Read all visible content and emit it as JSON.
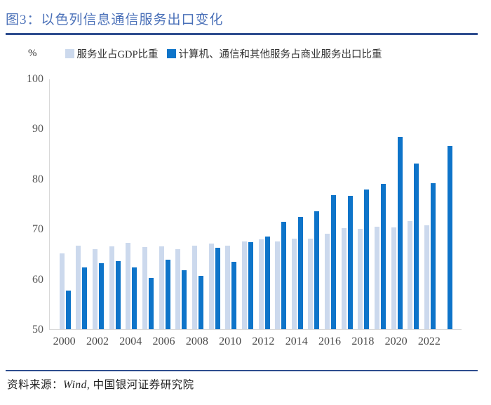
{
  "page": {
    "title": "图3：以色列信息通信服务出口变化",
    "footer": {
      "prefix": "资料来源：",
      "wind": "Wind, ",
      "institution": "中国银河证券研究院"
    }
  },
  "colors": {
    "title_color": "#4a70b8",
    "rule_color": "#2e4d8f",
    "axis_line_color": "#d9d9d9"
  },
  "chart_data": {
    "type": "bar",
    "title": "以色列信息通信服务出口变化",
    "unit": "%",
    "ylabel": "%",
    "xlabel": "",
    "ylim": [
      50,
      100
    ],
    "yticks": [
      100,
      90,
      80,
      70,
      60,
      50
    ],
    "grid": false,
    "legend_position": "top",
    "categories": [
      2000,
      2001,
      2002,
      2003,
      2004,
      2005,
      2006,
      2007,
      2008,
      2009,
      2010,
      2011,
      2012,
      2013,
      2014,
      2015,
      2016,
      2017,
      2018,
      2019,
      2020,
      2021,
      2022,
      2023
    ],
    "xtick_labels": [
      "2000",
      "2002",
      "2004",
      "2006",
      "2008",
      "2010",
      "2012",
      "2014",
      "2016",
      "2018",
      "2020",
      "2022"
    ],
    "series": [
      {
        "name": "服务业占GDP比重",
        "color": "#ccd9ed",
        "values": [
          65.1,
          66.6,
          66.0,
          66.5,
          67.2,
          66.4,
          66.5,
          66.0,
          66.6,
          67.1,
          66.7,
          67.5,
          67.9,
          67.5,
          68.1,
          68.1,
          69.0,
          70.2,
          70.1,
          70.4,
          70.3,
          71.6,
          70.8,
          null
        ]
      },
      {
        "name": "计算机、通信和其他服务占商业服务出口比重",
        "color": "#0e74c9",
        "values": [
          57.7,
          62.3,
          63.2,
          63.6,
          62.3,
          60.2,
          63.8,
          61.8,
          60.6,
          66.2,
          63.4,
          67.4,
          68.5,
          71.4,
          72.4,
          73.6,
          76.8,
          76.6,
          77.9,
          79.0,
          88.4,
          83.0,
          79.2,
          86.5
        ]
      }
    ]
  }
}
